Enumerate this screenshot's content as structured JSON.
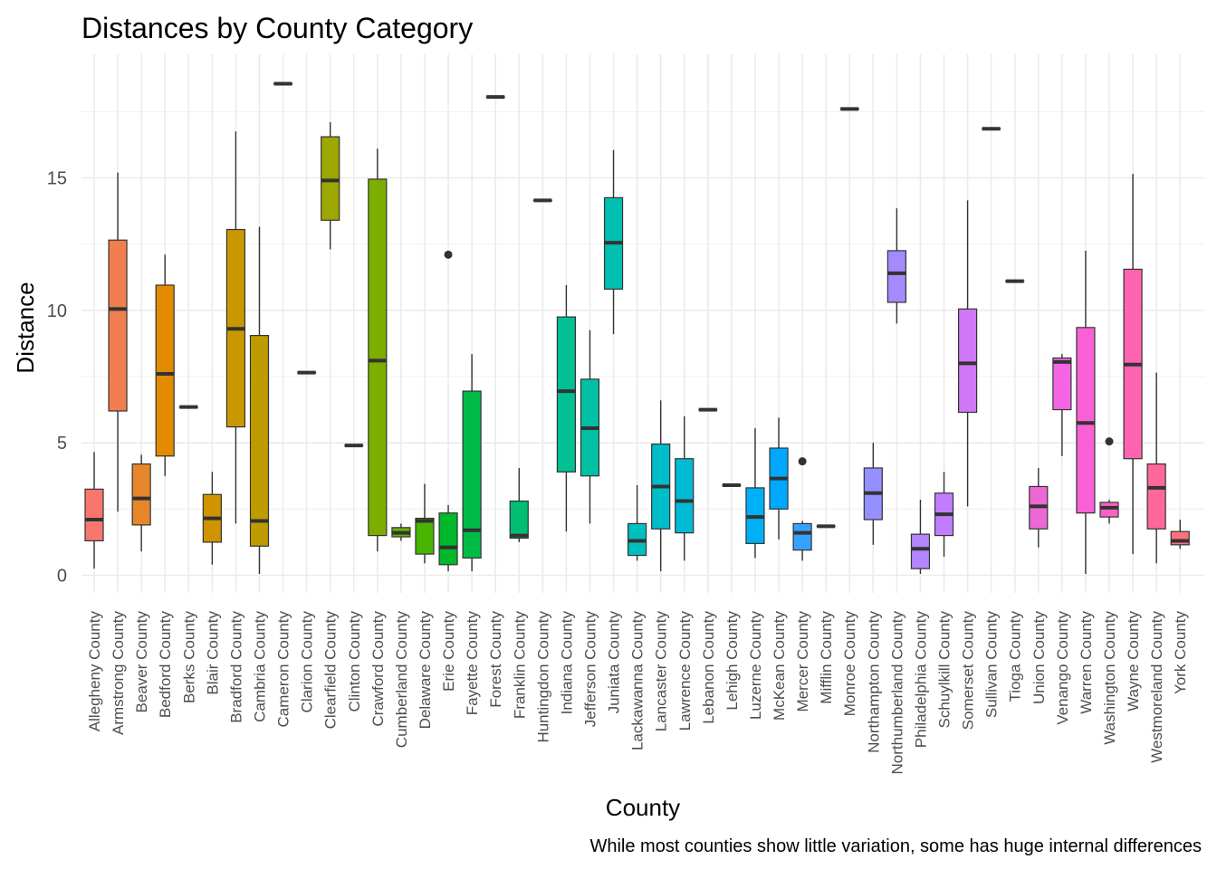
{
  "chart_data": {
    "type": "boxplot",
    "title": "Distances by County Category",
    "xlabel": "County",
    "ylabel": "Distance",
    "caption": "While most counties show little variation, some has huge internal differences",
    "ylim": [
      -0.6,
      19.0
    ],
    "yticks": [
      0,
      5,
      10,
      15
    ],
    "grid": true,
    "legend": "none",
    "categories": [
      "Allegheny County",
      "Armstrong County",
      "Beaver County",
      "Bedford County",
      "Berks County",
      "Blair County",
      "Bradford County",
      "Cambria County",
      "Cameron County",
      "Clarion County",
      "Clearfield County",
      "Clinton County",
      "Crawford County",
      "Cumberland County",
      "Delaware County",
      "Erie County",
      "Fayette County",
      "Forest County",
      "Franklin County",
      "Huntingdon County",
      "Indiana County",
      "Jefferson County",
      "Juniata County",
      "Lackawanna County",
      "Lancaster County",
      "Lawrence County",
      "Lebanon County",
      "Lehigh County",
      "Luzerne County",
      "McKean County",
      "Mercer County",
      "Mifflin County",
      "Monroe County",
      "Northampton County",
      "Northumberland County",
      "Philadelphia County",
      "Schuylkill County",
      "Somerset County",
      "Sullivan County",
      "Tioga County",
      "Union County",
      "Venango County",
      "Warren County",
      "Washington County",
      "Wayne County",
      "Westmoreland County",
      "York County"
    ],
    "boxes": [
      {
        "county": "Allegheny County",
        "min": 0.25,
        "q1": 1.3,
        "median": 2.1,
        "q3": 3.25,
        "max": 4.65,
        "outliers": [],
        "color": "#F8766D"
      },
      {
        "county": "Armstrong County",
        "min": 2.4,
        "q1": 6.2,
        "median": 10.05,
        "q3": 12.65,
        "max": 15.2,
        "outliers": [],
        "color": "#F07E4F"
      },
      {
        "county": "Beaver County",
        "min": 0.9,
        "q1": 1.9,
        "median": 2.9,
        "q3": 4.2,
        "max": 4.55,
        "outliers": [],
        "color": "#E6862B"
      },
      {
        "county": "Bedford County",
        "min": 3.75,
        "q1": 4.5,
        "median": 7.6,
        "q3": 10.95,
        "max": 12.1,
        "outliers": [],
        "color": "#E28A00"
      },
      {
        "county": "Berks County",
        "min": 6.35,
        "q1": 6.35,
        "median": 6.35,
        "q3": 6.35,
        "max": 6.35,
        "outliers": [],
        "color": "#D89000"
      },
      {
        "county": "Blair County",
        "min": 0.4,
        "q1": 1.25,
        "median": 2.15,
        "q3": 3.05,
        "max": 3.9,
        "outliers": [],
        "color": "#D09400"
      },
      {
        "county": "Bradford County",
        "min": 1.95,
        "q1": 5.6,
        "median": 9.3,
        "q3": 13.05,
        "max": 16.75,
        "outliers": [],
        "color": "#C99800"
      },
      {
        "county": "Cambria County",
        "min": 0.05,
        "q1": 1.1,
        "median": 2.05,
        "q3": 9.05,
        "max": 13.15,
        "outliers": [],
        "color": "#BE9C00"
      },
      {
        "county": "Cameron County",
        "min": 18.55,
        "q1": 18.55,
        "median": 18.55,
        "q3": 18.55,
        "max": 18.55,
        "outliers": [],
        "color": "#B3A000"
      },
      {
        "county": "Clarion County",
        "min": 7.65,
        "q1": 7.65,
        "median": 7.65,
        "q3": 7.65,
        "max": 7.65,
        "outliers": [],
        "color": "#A8A400"
      },
      {
        "county": "Clearfield County",
        "min": 12.3,
        "q1": 13.4,
        "median": 14.9,
        "q3": 16.55,
        "max": 17.1,
        "outliers": [],
        "color": "#9CA700"
      },
      {
        "county": "Clinton County",
        "min": 4.9,
        "q1": 4.9,
        "median": 4.9,
        "q3": 4.9,
        "max": 4.9,
        "outliers": [],
        "color": "#8FAA00"
      },
      {
        "county": "Crawford County",
        "min": 0.9,
        "q1": 1.5,
        "median": 8.1,
        "q3": 14.95,
        "max": 16.1,
        "outliers": [],
        "color": "#7CAE00"
      },
      {
        "county": "Cumberland County",
        "min": 1.3,
        "q1": 1.45,
        "median": 1.6,
        "q3": 1.8,
        "max": 1.95,
        "outliers": [],
        "color": "#66B100"
      },
      {
        "county": "Delaware County",
        "min": 0.45,
        "q1": 0.8,
        "median": 2.05,
        "q3": 2.15,
        "max": 3.45,
        "outliers": [],
        "color": "#48B500"
      },
      {
        "county": "Erie County",
        "min": 0.15,
        "q1": 0.4,
        "median": 1.05,
        "q3": 2.35,
        "max": 2.65,
        "outliers": [
          12.1
        ],
        "color": "#00B82A"
      },
      {
        "county": "Fayette County",
        "min": 0.15,
        "q1": 0.65,
        "median": 1.7,
        "q3": 6.95,
        "max": 8.35,
        "outliers": [],
        "color": "#00BA48"
      },
      {
        "county": "Forest County",
        "min": 18.05,
        "q1": 18.05,
        "median": 18.05,
        "q3": 18.05,
        "max": 18.05,
        "outliers": [],
        "color": "#00BC5F"
      },
      {
        "county": "Franklin County",
        "min": 1.25,
        "q1": 1.4,
        "median": 1.5,
        "q3": 2.8,
        "max": 4.05,
        "outliers": [],
        "color": "#00BD73"
      },
      {
        "county": "Huntingdon County",
        "min": 14.15,
        "q1": 14.15,
        "median": 14.15,
        "q3": 14.15,
        "max": 14.15,
        "outliers": [],
        "color": "#00BE85"
      },
      {
        "county": "Indiana County",
        "min": 1.65,
        "q1": 3.9,
        "median": 6.95,
        "q3": 9.75,
        "max": 10.95,
        "outliers": [],
        "color": "#00C094"
      },
      {
        "county": "Jefferson County",
        "min": 1.95,
        "q1": 3.75,
        "median": 5.55,
        "q3": 7.4,
        "max": 9.25,
        "outliers": [],
        "color": "#00C0A3"
      },
      {
        "county": "Juniata County",
        "min": 9.1,
        "q1": 10.8,
        "median": 12.55,
        "q3": 14.25,
        "max": 16.05,
        "outliers": [],
        "color": "#00C0B1"
      },
      {
        "county": "Lackawanna County",
        "min": 0.55,
        "q1": 0.75,
        "median": 1.3,
        "q3": 1.95,
        "max": 3.4,
        "outliers": [],
        "color": "#00BFBE"
      },
      {
        "county": "Lancaster County",
        "min": 0.15,
        "q1": 1.75,
        "median": 3.35,
        "q3": 4.95,
        "max": 6.6,
        "outliers": [],
        "color": "#00BDCA"
      },
      {
        "county": "Lawrence County",
        "min": 0.55,
        "q1": 1.6,
        "median": 2.8,
        "q3": 4.4,
        "max": 6.0,
        "outliers": [],
        "color": "#00BBD6"
      },
      {
        "county": "Lebanon County",
        "min": 6.25,
        "q1": 6.25,
        "median": 6.25,
        "q3": 6.25,
        "max": 6.25,
        "outliers": [],
        "color": "#00B8E1"
      },
      {
        "county": "Lehigh County",
        "min": 3.4,
        "q1": 3.4,
        "median": 3.4,
        "q3": 3.4,
        "max": 3.4,
        "outliers": [],
        "color": "#00B4EB"
      },
      {
        "county": "Luzerne County",
        "min": 0.65,
        "q1": 1.2,
        "median": 2.2,
        "q3": 3.3,
        "max": 5.55,
        "outliers": [],
        "color": "#00B0F6"
      },
      {
        "county": "McKean County",
        "min": 1.35,
        "q1": 2.5,
        "median": 3.65,
        "q3": 4.8,
        "max": 5.95,
        "outliers": [],
        "color": "#00A9FF"
      },
      {
        "county": "Mercer County",
        "min": 0.55,
        "q1": 0.95,
        "median": 1.6,
        "q3": 1.95,
        "max": 2.05,
        "outliers": [
          4.3
        ],
        "color": "#35A2FF"
      },
      {
        "county": "Mifflin County",
        "min": 1.85,
        "q1": 1.85,
        "median": 1.85,
        "q3": 1.85,
        "max": 1.85,
        "outliers": [],
        "color": "#619CFF"
      },
      {
        "county": "Monroe County",
        "min": 17.6,
        "q1": 17.6,
        "median": 17.6,
        "q3": 17.6,
        "max": 17.6,
        "outliers": [],
        "color": "#7F95FF"
      },
      {
        "county": "Northampton County",
        "min": 1.15,
        "q1": 2.1,
        "median": 3.1,
        "q3": 4.05,
        "max": 5.0,
        "outliers": [],
        "color": "#9590FF"
      },
      {
        "county": "Northumberland County",
        "min": 9.5,
        "q1": 10.3,
        "median": 11.4,
        "q3": 12.25,
        "max": 13.85,
        "outliers": [],
        "color": "#A58AFF"
      },
      {
        "county": "Philadelphia County",
        "min": 0.05,
        "q1": 0.25,
        "median": 1.0,
        "q3": 1.55,
        "max": 2.85,
        "outliers": [],
        "color": "#B385FF"
      },
      {
        "county": "Schuylkill County",
        "min": 0.7,
        "q1": 1.5,
        "median": 2.3,
        "q3": 3.1,
        "max": 3.9,
        "outliers": [],
        "color": "#C07EFF"
      },
      {
        "county": "Somerset County",
        "min": 2.6,
        "q1": 6.15,
        "median": 8.0,
        "q3": 10.05,
        "max": 14.15,
        "outliers": [],
        "color": "#CF77F6"
      },
      {
        "county": "Sullivan County",
        "min": 16.85,
        "q1": 16.85,
        "median": 16.85,
        "q3": 16.85,
        "max": 16.85,
        "outliers": [],
        "color": "#DA72EC"
      },
      {
        "county": "Tioga County",
        "min": 11.1,
        "q1": 11.1,
        "median": 11.1,
        "q3": 11.1,
        "max": 11.1,
        "outliers": [],
        "color": "#E46EE2"
      },
      {
        "county": "Union County",
        "min": 1.05,
        "q1": 1.75,
        "median": 2.6,
        "q3": 3.35,
        "max": 4.05,
        "outliers": [],
        "color": "#EC69D5"
      },
      {
        "county": "Venango County",
        "min": 4.5,
        "q1": 6.25,
        "median": 8.05,
        "q3": 8.2,
        "max": 8.35,
        "outliers": [],
        "color": "#F564E3"
      },
      {
        "county": "Warren County",
        "min": 0.05,
        "q1": 2.35,
        "median": 5.75,
        "q3": 9.35,
        "max": 12.25,
        "outliers": [],
        "color": "#FB61D7"
      },
      {
        "county": "Washington County",
        "min": 1.95,
        "q1": 2.2,
        "median": 2.55,
        "q3": 2.75,
        "max": 2.85,
        "outliers": [
          5.05
        ],
        "color": "#FF61C3"
      },
      {
        "county": "Wayne County",
        "min": 0.8,
        "q1": 4.4,
        "median": 7.95,
        "q3": 11.55,
        "max": 15.15,
        "outliers": [],
        "color": "#FF64B0"
      },
      {
        "county": "Westmoreland County",
        "min": 0.45,
        "q1": 1.75,
        "median": 3.3,
        "q3": 4.2,
        "max": 7.65,
        "outliers": [],
        "color": "#FF689D"
      },
      {
        "county": "York County",
        "min": 1.0,
        "q1": 1.15,
        "median": 1.3,
        "q3": 1.65,
        "max": 2.1,
        "outliers": [],
        "color": "#FC717F"
      }
    ]
  }
}
